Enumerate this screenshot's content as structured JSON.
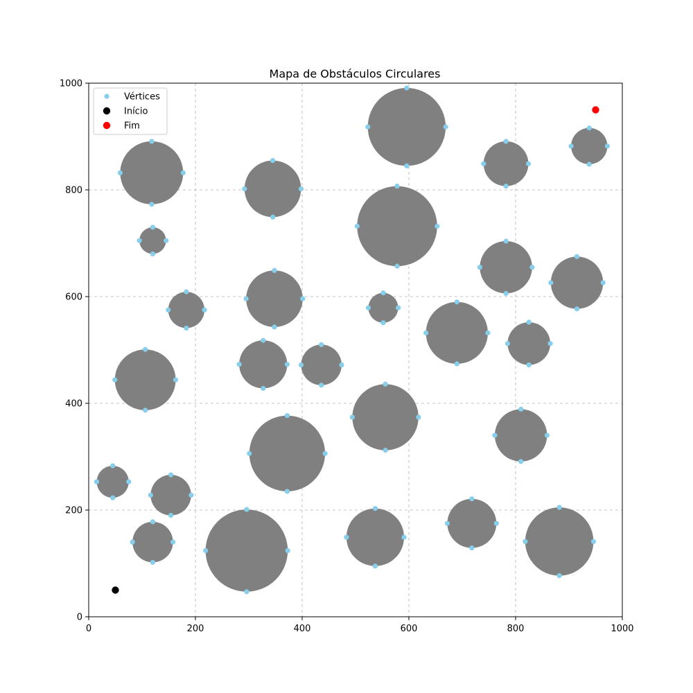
{
  "chart_data": {
    "type": "scatter",
    "title": "Mapa de Obstáculos Circulares",
    "xlabel": "",
    "ylabel": "",
    "xlim": [
      0,
      1000
    ],
    "ylim": [
      0,
      1000
    ],
    "xticks": [
      "0",
      "200",
      "400",
      "600",
      "800",
      "1000"
    ],
    "yticks": [
      "0",
      "200",
      "400",
      "600",
      "800",
      "1000"
    ],
    "grid": true,
    "legend_position": "top-left",
    "colors": {
      "obstacle": "#808080",
      "vertex": "#87ceeb",
      "start": "#000000",
      "end": "#ff0000"
    },
    "legend": [
      {
        "label": "Vértices",
        "key": "vertex"
      },
      {
        "label": "Início",
        "key": "start"
      },
      {
        "label": "Fim",
        "key": "end"
      }
    ],
    "obstacles": [
      {
        "cx": 118,
        "cy": 832,
        "r": 59
      },
      {
        "cx": 120,
        "cy": 705,
        "r": 25
      },
      {
        "cx": 183,
        "cy": 575,
        "r": 34
      },
      {
        "cx": 106,
        "cy": 444,
        "r": 57
      },
      {
        "cx": 45,
        "cy": 253,
        "r": 30
      },
      {
        "cx": 154,
        "cy": 228,
        "r": 38
      },
      {
        "cx": 120,
        "cy": 140,
        "r": 38
      },
      {
        "cx": 296,
        "cy": 124,
        "r": 77
      },
      {
        "cx": 345,
        "cy": 802,
        "r": 53
      },
      {
        "cx": 348,
        "cy": 596,
        "r": 53
      },
      {
        "cx": 327,
        "cy": 473,
        "r": 45
      },
      {
        "cx": 436,
        "cy": 472,
        "r": 38
      },
      {
        "cx": 372,
        "cy": 306,
        "r": 71
      },
      {
        "cx": 596,
        "cy": 918,
        "r": 73
      },
      {
        "cx": 578,
        "cy": 732,
        "r": 75
      },
      {
        "cx": 552,
        "cy": 579,
        "r": 28
      },
      {
        "cx": 556,
        "cy": 374,
        "r": 62
      },
      {
        "cx": 537,
        "cy": 149,
        "r": 54
      },
      {
        "cx": 690,
        "cy": 532,
        "r": 58
      },
      {
        "cx": 718,
        "cy": 175,
        "r": 46
      },
      {
        "cx": 782,
        "cy": 849,
        "r": 42
      },
      {
        "cx": 782,
        "cy": 655,
        "r": 49
      },
      {
        "cx": 825,
        "cy": 512,
        "r": 40
      },
      {
        "cx": 810,
        "cy": 340,
        "r": 49
      },
      {
        "cx": 882,
        "cy": 141,
        "r": 64
      },
      {
        "cx": 938,
        "cy": 882,
        "r": 34
      },
      {
        "cx": 915,
        "cy": 626,
        "r": 49
      }
    ],
    "start": {
      "x": 50,
      "y": 50
    },
    "end": {
      "x": 950,
      "y": 950
    }
  }
}
